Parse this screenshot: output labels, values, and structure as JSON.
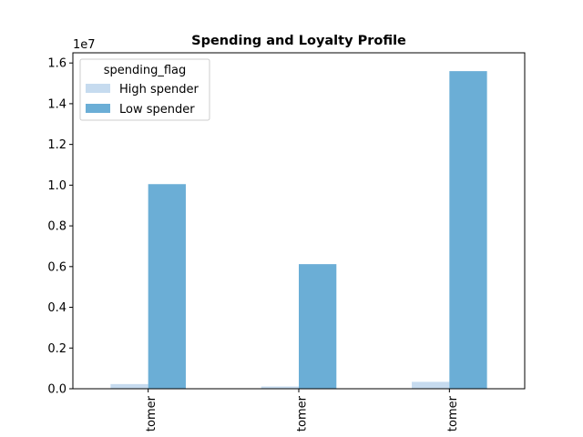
{
  "chart_data": {
    "type": "bar",
    "title": "Spending and Loyalty Profile",
    "xlabel": "",
    "ylabel": "",
    "categories": [
      "tomer",
      "tomer",
      "tomer"
    ],
    "series": [
      {
        "name": "High spender",
        "values": [
          230000,
          110000,
          340000
        ],
        "color": "#c6dbef"
      },
      {
        "name": "Low spender",
        "values": [
          10050000,
          6120000,
          15600000
        ],
        "color": "#6baed6"
      }
    ],
    "ylim": [
      0,
      16500000
    ],
    "yticks": [
      0,
      2000000,
      4000000,
      6000000,
      8000000,
      10000000,
      12000000,
      14000000,
      16000000
    ],
    "ytick_labels": [
      "0.0",
      "0.2",
      "0.4",
      "0.6",
      "0.8",
      "1.0",
      "1.2",
      "1.4",
      "1.6"
    ],
    "y_offset_label": "1e7",
    "legend": {
      "title": "spending_flag",
      "position": "top-left"
    },
    "grid": false
  }
}
